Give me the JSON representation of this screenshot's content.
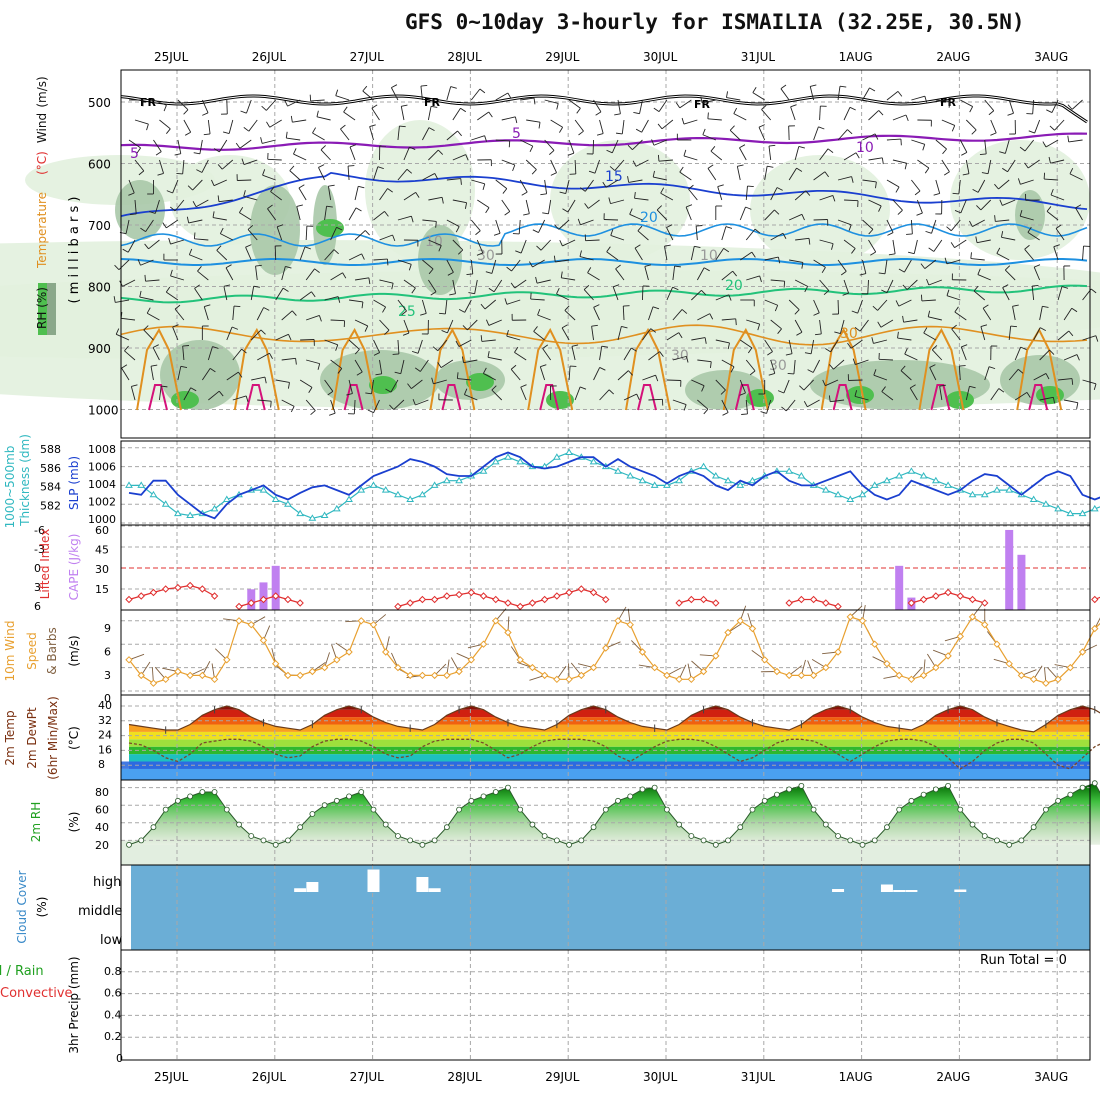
{
  "title": "GFS 0~10day 3-hourly for ISMAILIA (32.25E, 30.5N)",
  "dates": [
    "25JUL",
    "26JUL",
    "27JUL",
    "28JUL",
    "29JUL",
    "30JUL",
    "31JUL",
    "1AUG",
    "2AUG",
    "3AUG"
  ],
  "colors": {
    "frame": "#000000",
    "grid": "#a8a8a8",
    "purple": "#8a1bb5",
    "blue": "#1a3fcf",
    "lightblue": "#1e90e0",
    "green": "#22c27a",
    "orange": "#e09020",
    "magenta": "#d4127a",
    "rh_light": "#e2f1de",
    "rh_mid": "#a8c8a8",
    "rh_dark": "#6f8f75",
    "rh_green": "#4fbf4f",
    "slp": "#1a3fcf",
    "thick": "#30b8c0",
    "li": "#e03030",
    "cape": "#c080f0",
    "wind10": "#e8a030",
    "barb": "#806040",
    "cloud": "#6baed6"
  },
  "panels": {
    "upper": {
      "ylabel_parts": [
        "RH (%)",
        "Temperature",
        "(°C)",
        "Wind",
        "(m/s)"
      ],
      "ylabel_m": "( m i l l i b a r s )",
      "levels": [
        "500",
        "600",
        "700",
        "800",
        "900",
        "1000"
      ],
      "contour_labels": [
        "FR",
        "FR",
        "FR",
        "FR",
        "5",
        "5",
        "10",
        "15",
        "20",
        "20",
        "25",
        "30",
        "30",
        "30",
        "10",
        "30",
        "10"
      ]
    },
    "slp": {
      "ylabel_left": [
        "1000~500mb",
        "Thickness (dm)"
      ],
      "ylabel_right": "SLP (mb)",
      "left_ticks": [
        "588",
        "586",
        "584",
        "582"
      ],
      "right_ticks": [
        "1008",
        "1006",
        "1004",
        "1002",
        "1000"
      ]
    },
    "cape": {
      "ylabel_left": "Lifted Index",
      "ylabel_right": "CAPE (J/kg)",
      "left_ticks": [
        "-6",
        "-3",
        "0",
        "3",
        "6"
      ],
      "right_ticks": [
        "60",
        "45",
        "30",
        "15"
      ]
    },
    "wind": {
      "ylabel": [
        "10m Wind",
        "Speed",
        "& Barbs",
        "(m/s)"
      ],
      "ticks": [
        "9",
        "6",
        "3",
        "0"
      ]
    },
    "temp": {
      "ylabel": [
        "2m Temp",
        "2m DewPt",
        "(6hr Min/Max)",
        "(°C)"
      ],
      "ticks": [
        "40",
        "32",
        "24",
        "16",
        "8"
      ]
    },
    "rh": {
      "ylabel": [
        "2m RH",
        "(%)"
      ],
      "ticks": [
        "80",
        "60",
        "40",
        "20"
      ]
    },
    "cloud": {
      "ylabel": [
        "Cloud Cover",
        "(%)"
      ],
      "ticks": [
        "high",
        "middle",
        "low"
      ]
    },
    "precip": {
      "ylabel": [
        "Total / Rain",
        "Convective",
        "3hr Precip (mm)"
      ],
      "ticks": [
        "0.8",
        "0.6",
        "0.4",
        "0.2",
        "0"
      ],
      "run_total": "Run Total = 0"
    }
  },
  "chart_data": [
    {
      "type": "line",
      "name": "slp_thickness",
      "x_unit": "3-hourly steps",
      "series": [
        {
          "name": "SLP (mb)",
          "values": [
            1003.2,
            1003,
            1004.5,
            1004.5,
            1003,
            1002,
            1001,
            1000.5,
            1002,
            1003,
            1003.5,
            1004,
            1003,
            1002.5,
            1003.2,
            1003.8,
            1004,
            1003.5,
            1003,
            1004,
            1005,
            1005.5,
            1006,
            1006.8,
            1006.5,
            1006,
            1005.2,
            1005,
            1005,
            1006,
            1007,
            1007.5,
            1007,
            1006,
            1005.8,
            1006,
            1006.5,
            1007,
            1007,
            1006,
            1006.8,
            1006,
            1005.5,
            1005,
            1004.2,
            1005,
            1005.5,
            1005,
            1004,
            1003.5,
            1004.5,
            1004,
            1005,
            1005.5,
            1004.5,
            1004,
            1004,
            1004.5,
            1005,
            1005.5,
            1004,
            1003,
            1002.5,
            1003,
            1004.5,
            1004,
            1003.5,
            1003,
            1003.5,
            1004.5,
            1005.2,
            1005,
            1004,
            1003,
            1004,
            1005,
            1005.5,
            1005,
            1003,
            1002.5,
            1003,
            1004.5,
            1005,
            1005.5,
            1005
          ]
        },
        {
          "name": "Thickness (dm)",
          "values": [
            584.5,
            584.5,
            583.5,
            582.5,
            581.5,
            581.3,
            581.5,
            582,
            583,
            583.5,
            584,
            584,
            583,
            582.5,
            581.5,
            581,
            581.3,
            582,
            583,
            584,
            584.5,
            584,
            583.5,
            583,
            583.5,
            584.5,
            585,
            585,
            585.5,
            586,
            587,
            587.5,
            587,
            586.5,
            586.5,
            587.5,
            588,
            587.5,
            587,
            586.5,
            586,
            585.5,
            585,
            584.5,
            584.5,
            585,
            586,
            586.5,
            585.5,
            585,
            584.5,
            585,
            585.5,
            586,
            586,
            585.5,
            584.5,
            584,
            583.5,
            583,
            583.5,
            584.5,
            585,
            585.5,
            586,
            585.5,
            585,
            584.5,
            584,
            583.5,
            583.5,
            584,
            584,
            583.5,
            583,
            582.5,
            582,
            581.5,
            581.5,
            582,
            582.5,
            582,
            581.5,
            581,
            581.5
          ]
        }
      ]
    },
    {
      "type": "bar",
      "name": "cape_lifted_index",
      "series": [
        {
          "name": "CAPE (J/kg)",
          "values": [
            {
              "step": 10,
              "value": 15
            },
            {
              "step": 11,
              "value": 20
            },
            {
              "step": 12,
              "value": 32
            },
            {
              "step": 63,
              "value": 32
            },
            {
              "step": 64,
              "value": 9
            },
            {
              "step": 72,
              "value": 58
            },
            {
              "step": 73,
              "value": 40
            }
          ]
        },
        {
          "name": "Lifted Index",
          "values": [
            4.5,
            4,
            3.5,
            3,
            2.8,
            2.5,
            3,
            4,
            6,
            5.5,
            5,
            4.5,
            4,
            4.5,
            5,
            6,
            6,
            6,
            6,
            6,
            6,
            6,
            5.5,
            5,
            4.5,
            4.5,
            4,
            3.8,
            3.5,
            4,
            4.5,
            5,
            5.5,
            5,
            4.5,
            4,
            3.5,
            3,
            3.5,
            4.5,
            6,
            6,
            6,
            6,
            6,
            5,
            4.5,
            4.5,
            5,
            6,
            6,
            6,
            6,
            6,
            5,
            4.5,
            4.5,
            5,
            5.5,
            6,
            6,
            6,
            6,
            6,
            5,
            4.5,
            4,
            3.5,
            4,
            4.5,
            5,
            6,
            6,
            6,
            6,
            6,
            6,
            6,
            6,
            4.5,
            3.8,
            3.5,
            3,
            2.8,
            3.2,
            3.5
          ]
        }
      ]
    },
    {
      "type": "line",
      "name": "wind10m",
      "series": [
        {
          "name": "10m Wind Speed (m/s)",
          "values": [
            4,
            2,
            1,
            1.5,
            2.5,
            2,
            2,
            1.5,
            4,
            9,
            8.5,
            6.5,
            3.5,
            2,
            2,
            2.5,
            3,
            4,
            5,
            9,
            8.5,
            5,
            3,
            2,
            2,
            2,
            2,
            2.5,
            4,
            6,
            9,
            7.5,
            4,
            3,
            2,
            1.5,
            1.5,
            2,
            3,
            5.5,
            9,
            8.5,
            5,
            3,
            2,
            1.5,
            1.5,
            2.5,
            4.5,
            7.5,
            9,
            8,
            4,
            2.5,
            2,
            2,
            2,
            3,
            5,
            9.5,
            9,
            6,
            3.5,
            2,
            1.5,
            2,
            3,
            4.5,
            7,
            9.5,
            8.5,
            6,
            3.5,
            2,
            1.5,
            1,
            1.5,
            3,
            5,
            8,
            9.5,
            8,
            5,
            2.5,
            1.5,
            1,
            1.5
          ]
        }
      ]
    },
    {
      "type": "area",
      "name": "temp_dewpoint",
      "series": [
        {
          "name": "2m Temp (°C)",
          "values": [
            30,
            29,
            28,
            27,
            27,
            30,
            35,
            38,
            40,
            38,
            34,
            31,
            29,
            28,
            27,
            30,
            35,
            38,
            40,
            38,
            34,
            31,
            29,
            28,
            27,
            30,
            35,
            38,
            40,
            38,
            34,
            31,
            29,
            28,
            27,
            30,
            35,
            38,
            40,
            38,
            34,
            31,
            29,
            28,
            27,
            30,
            35,
            38,
            40,
            38,
            34,
            31,
            29,
            28,
            27,
            30,
            35,
            38,
            40,
            38,
            34,
            31,
            29,
            28,
            27,
            30,
            35,
            38,
            40,
            38,
            34,
            31,
            29,
            27,
            26,
            30,
            35,
            38,
            40,
            38,
            34,
            31,
            29,
            28,
            25,
            28,
            30
          ]
        },
        {
          "name": "2m DewPt (°C)",
          "values": [
            20,
            19,
            16,
            12,
            10,
            14,
            20,
            21,
            22,
            22,
            21,
            18,
            14,
            12,
            13,
            18,
            21,
            22,
            22,
            21,
            18,
            14,
            12,
            13,
            18,
            21,
            22,
            22,
            22,
            20,
            16,
            12,
            14,
            18,
            21,
            22,
            22,
            22,
            21,
            18,
            13,
            10,
            14,
            18,
            21,
            22,
            22,
            21,
            18,
            14,
            10,
            12,
            16,
            20,
            22,
            22,
            21,
            18,
            14,
            10,
            14,
            18,
            21,
            22,
            22,
            21,
            18,
            12,
            6,
            10,
            16,
            20,
            22,
            22,
            20,
            14,
            8,
            6,
            12,
            18,
            21,
            22,
            22,
            21,
            20
          ]
        }
      ]
    },
    {
      "type": "area",
      "name": "rh2m",
      "series": [
        {
          "name": "2m RH (%)",
          "values": [
            15,
            20,
            35,
            55,
            65,
            70,
            75,
            75,
            55,
            38,
            25,
            20,
            15,
            20,
            35,
            50,
            60,
            65,
            70,
            75,
            55,
            38,
            25,
            20,
            15,
            20,
            35,
            55,
            65,
            70,
            75,
            80,
            55,
            38,
            25,
            20,
            15,
            20,
            35,
            55,
            65,
            70,
            78,
            80,
            55,
            38,
            25,
            20,
            15,
            20,
            35,
            55,
            65,
            72,
            78,
            82,
            55,
            38,
            25,
            20,
            15,
            20,
            35,
            55,
            65,
            72,
            78,
            82,
            55,
            38,
            25,
            20,
            15,
            20,
            35,
            55,
            65,
            72,
            80,
            85,
            60,
            40,
            25,
            15,
            20,
            35,
            55,
            65,
            75,
            82,
            85,
            60
          ]
        }
      ]
    },
    {
      "type": "bar",
      "name": "cloud_cover",
      "series": [
        {
          "name": "high (%)",
          "values": [
            {
              "step": 14,
              "value": 15
            },
            {
              "step": 15,
              "value": 40
            },
            {
              "step": 20,
              "value": 90
            },
            {
              "step": 24,
              "value": 60
            },
            {
              "step": 25,
              "value": 15
            },
            {
              "step": 58,
              "value": 12
            },
            {
              "step": 62,
              "value": 30
            },
            {
              "step": 63,
              "value": 8
            },
            {
              "step": 64,
              "value": 8
            },
            {
              "step": 68,
              "value": 10
            }
          ]
        }
      ]
    },
    {
      "type": "bar",
      "name": "precip_3hr",
      "series": [
        {
          "name": "Total / Rain (mm)",
          "values": []
        }
      ],
      "ylim": [
        0,
        1
      ]
    }
  ]
}
